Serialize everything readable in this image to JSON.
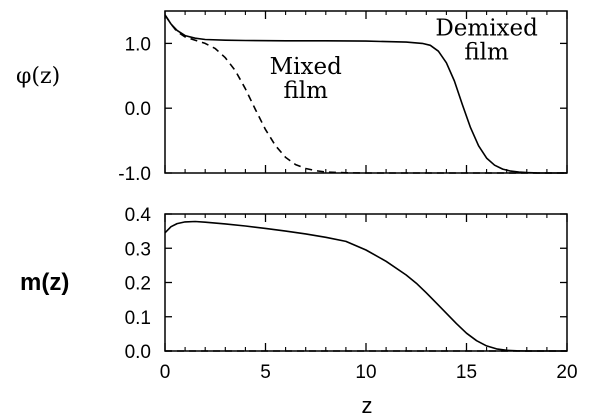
{
  "chart_data": [
    {
      "type": "line",
      "ylabel": "φ(z)",
      "xlim": [
        0,
        20
      ],
      "ylim": [
        -1.0,
        1.5
      ],
      "yticks": [
        -1.0,
        0.0,
        1.0
      ],
      "ytick_labels": [
        "-1.0",
        "0.0",
        "1.0"
      ],
      "xticks": [
        0,
        5,
        10,
        15,
        20
      ],
      "annotations": [
        {
          "lines": [
            "Demixed",
            "film"
          ],
          "x": 16.0,
          "y": 1.12
        },
        {
          "lines": [
            "Mixed",
            "film"
          ],
          "x": 7.0,
          "y": 0.53
        }
      ],
      "series": [
        {
          "style": "solid",
          "x": [
            0,
            0.3,
            0.6,
            1,
            1.5,
            2,
            3,
            4,
            6,
            8,
            10,
            12,
            12.8,
            13.2,
            13.6,
            14.0,
            14.4,
            14.8,
            15.2,
            15.6,
            16.0,
            16.4,
            16.8,
            17.2,
            17.6,
            18.0,
            18.5,
            19.0,
            20.0
          ],
          "y": [
            1.44,
            1.3,
            1.2,
            1.12,
            1.08,
            1.06,
            1.05,
            1.045,
            1.04,
            1.04,
            1.035,
            1.02,
            1.0,
            0.97,
            0.88,
            0.7,
            0.42,
            0.05,
            -0.3,
            -0.58,
            -0.77,
            -0.88,
            -0.94,
            -0.97,
            -0.985,
            -0.993,
            -0.998,
            -1.0,
            -1.0
          ]
        },
        {
          "style": "dashed",
          "x": [
            0,
            0.3,
            0.6,
            1,
            1.5,
            2,
            2.5,
            3,
            3.5,
            4,
            4.5,
            5,
            5.5,
            6,
            6.5,
            7,
            7.5,
            8,
            9,
            10,
            20
          ],
          "y": [
            1.44,
            1.3,
            1.18,
            1.1,
            1.05,
            1.0,
            0.92,
            0.78,
            0.58,
            0.3,
            -0.02,
            -0.33,
            -0.58,
            -0.76,
            -0.87,
            -0.93,
            -0.965,
            -0.985,
            -0.997,
            -1.0,
            -1.0
          ]
        }
      ]
    },
    {
      "type": "line",
      "ylabel": "m(z)",
      "xlabel": "z",
      "xlim": [
        0,
        20
      ],
      "ylim": [
        0.0,
        0.4
      ],
      "yticks": [
        0.0,
        0.1,
        0.2,
        0.3,
        0.4
      ],
      "ytick_labels": [
        "0.0",
        "0.1",
        "0.2",
        "0.3",
        "0.4"
      ],
      "xticks": [
        0,
        5,
        10,
        15,
        20
      ],
      "xtick_labels": [
        "0",
        "5",
        "10",
        "15",
        "20"
      ],
      "series": [
        {
          "style": "solid",
          "x": [
            0,
            0.3,
            0.6,
            1,
            1.5,
            2,
            3,
            4,
            5,
            6,
            7,
            8,
            9,
            10,
            11,
            12,
            12.5,
            13,
            13.5,
            14,
            14.5,
            15,
            15.5,
            16,
            16.5,
            17,
            17.5,
            18,
            20
          ],
          "y": [
            0.345,
            0.363,
            0.372,
            0.377,
            0.378,
            0.376,
            0.371,
            0.365,
            0.358,
            0.35,
            0.342,
            0.332,
            0.32,
            0.295,
            0.262,
            0.222,
            0.198,
            0.17,
            0.14,
            0.11,
            0.08,
            0.052,
            0.03,
            0.015,
            0.006,
            0.002,
            0.0005,
            0.0,
            0.0
          ]
        },
        {
          "style": "dashed",
          "x": [
            0,
            20
          ],
          "y": [
            0.0,
            0.0
          ]
        }
      ]
    }
  ]
}
